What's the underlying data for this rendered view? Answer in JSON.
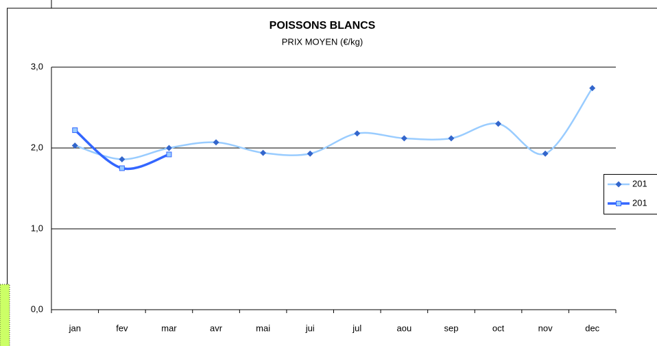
{
  "chart_data": {
    "type": "line",
    "title": "POISSONS BLANCS",
    "subtitle": "PRIX MOYEN (€/kg)",
    "categories": [
      "jan",
      "fev",
      "mar",
      "avr",
      "mai",
      "jui",
      "jul",
      "aou",
      "sep",
      "oct",
      "nov",
      "dec"
    ],
    "series": [
      {
        "name": "201",
        "color": "#99ccff",
        "marker_color": "#3366cc",
        "marker": "diamond",
        "values": [
          2.03,
          1.86,
          2.0,
          2.07,
          1.94,
          1.93,
          2.18,
          2.12,
          2.12,
          2.3,
          1.93,
          2.74
        ]
      },
      {
        "name": "201",
        "color": "#3366ff",
        "marker_color": "#99ccff",
        "marker": "square",
        "values": [
          2.22,
          1.75,
          1.92,
          null,
          null,
          null,
          null,
          null,
          null,
          null,
          null,
          null
        ]
      }
    ],
    "ylim": [
      0,
      3
    ],
    "yticks": [
      {
        "value": 0,
        "label": "0,0"
      },
      {
        "value": 1,
        "label": "1,0"
      },
      {
        "value": 2,
        "label": "2,0"
      },
      {
        "value": 3,
        "label": "3,0"
      }
    ],
    "grid": true,
    "legend": "right"
  }
}
